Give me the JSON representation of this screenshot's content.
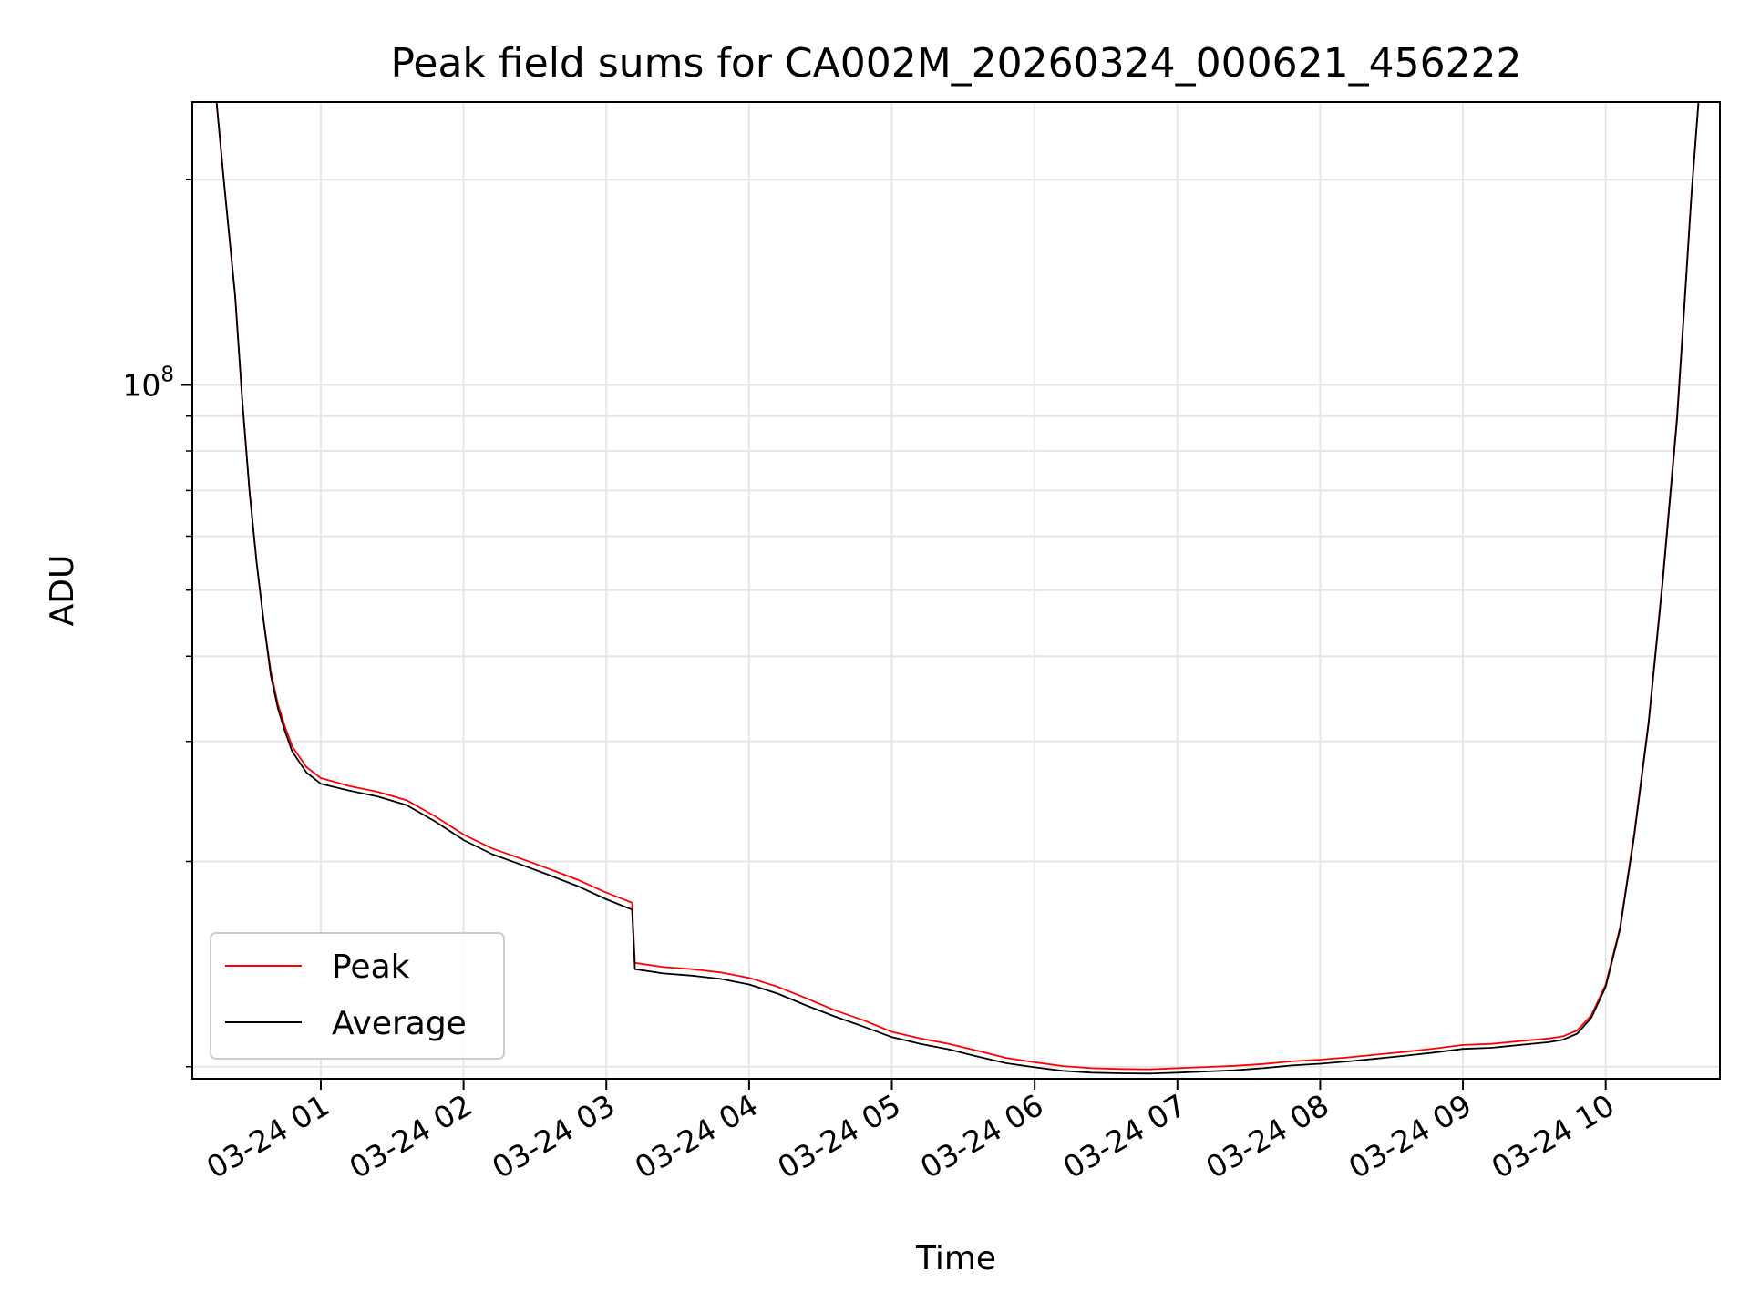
{
  "chart_data": {
    "type": "line",
    "title": "Peak field sums for CA002M_20260324_000621_456222",
    "xlabel": "Time",
    "ylabel": "ADU",
    "yscale": "log",
    "xlim": [
      0.1,
      10.8
    ],
    "ylim": [
      9600000,
      260000000
    ],
    "x_unit": "hours after 2026-03-24 00:00",
    "x_ticks": [
      1,
      2,
      3,
      4,
      5,
      6,
      7,
      8,
      9,
      10
    ],
    "x_tick_labels": [
      "03-24 01",
      "03-24 02",
      "03-24 03",
      "03-24 04",
      "03-24 05",
      "03-24 06",
      "03-24 07",
      "03-24 08",
      "03-24 09",
      "03-24 10"
    ],
    "y_major_ticks": [
      100000000
    ],
    "y_major_tick_labels": [
      {
        "base": "10",
        "exp": "8"
      }
    ],
    "y_minor_ticks": [
      10000000,
      20000000,
      30000000,
      40000000,
      50000000,
      60000000,
      70000000,
      80000000,
      90000000,
      200000000
    ],
    "grid": true,
    "legend_position": "lower-left",
    "colors": {
      "peak": "#ff0000",
      "average": "#000000",
      "grid": "#e6e6e6"
    },
    "series": [
      {
        "name": "Peak",
        "color": "#ff0000",
        "x": [
          0.1,
          0.27,
          0.32,
          0.4,
          0.45,
          0.5,
          0.55,
          0.6,
          0.65,
          0.7,
          0.75,
          0.8,
          0.9,
          1.0,
          1.2,
          1.4,
          1.6,
          1.8,
          2.0,
          2.2,
          2.4,
          2.6,
          2.8,
          3.0,
          3.18,
          3.2,
          3.4,
          3.6,
          3.8,
          4.0,
          4.2,
          4.4,
          4.6,
          4.8,
          5.0,
          5.2,
          5.4,
          5.6,
          5.8,
          6.0,
          6.2,
          6.4,
          6.6,
          6.8,
          7.0,
          7.2,
          7.4,
          7.6,
          7.8,
          8.0,
          8.2,
          8.4,
          8.6,
          8.8,
          9.0,
          9.2,
          9.4,
          9.6,
          9.7,
          9.8,
          9.9,
          10.0,
          10.1,
          10.2,
          10.3,
          10.4,
          10.5,
          10.55,
          10.6,
          10.65,
          10.8
        ],
        "y": [
          260000000,
          260000000,
          200000000,
          135000000,
          95000000,
          70000000,
          55000000,
          45000000,
          38000000,
          34000000,
          31500000,
          29500000,
          27500000,
          26500000,
          25800000,
          25300000,
          24600000,
          23300000,
          21900000,
          20900000,
          20200000,
          19500000,
          18800000,
          18000000,
          17400000,
          14200000,
          14000000,
          13900000,
          13750000,
          13500000,
          13100000,
          12600000,
          12100000,
          11700000,
          11250000,
          11000000,
          10800000,
          10550000,
          10300000,
          10150000,
          10020000,
          9950000,
          9920000,
          9910000,
          9950000,
          9990000,
          10030000,
          10090000,
          10180000,
          10240000,
          10320000,
          10420000,
          10520000,
          10630000,
          10760000,
          10800000,
          10900000,
          11000000,
          11080000,
          11300000,
          11900000,
          13200000,
          16000000,
          22000000,
          32000000,
          52000000,
          90000000,
          130000000,
          190000000,
          260000000,
          260000000
        ]
      },
      {
        "name": "Average",
        "color": "#000000",
        "x": [
          0.1,
          0.27,
          0.32,
          0.4,
          0.45,
          0.5,
          0.55,
          0.6,
          0.65,
          0.7,
          0.75,
          0.8,
          0.9,
          1.0,
          1.2,
          1.4,
          1.6,
          1.8,
          2.0,
          2.2,
          2.4,
          2.6,
          2.8,
          3.0,
          3.18,
          3.2,
          3.4,
          3.6,
          3.8,
          4.0,
          4.2,
          4.4,
          4.6,
          4.8,
          5.0,
          5.2,
          5.4,
          5.6,
          5.8,
          6.0,
          6.2,
          6.4,
          6.6,
          6.8,
          7.0,
          7.2,
          7.4,
          7.6,
          7.8,
          8.0,
          8.2,
          8.4,
          8.6,
          8.8,
          9.0,
          9.2,
          9.4,
          9.6,
          9.7,
          9.8,
          9.9,
          10.0,
          10.1,
          10.2,
          10.3,
          10.4,
          10.5,
          10.55,
          10.6,
          10.65,
          10.8
        ],
        "y": [
          260000000,
          260000000,
          200000000,
          135000000,
          95000000,
          70000000,
          55000000,
          45000000,
          37500000,
          33500000,
          31000000,
          29000000,
          27000000,
          26000000,
          25400000,
          24900000,
          24200000,
          22900000,
          21500000,
          20500000,
          19800000,
          19100000,
          18400000,
          17600000,
          17000000,
          13900000,
          13700000,
          13600000,
          13450000,
          13200000,
          12800000,
          12300000,
          11850000,
          11450000,
          11050000,
          10800000,
          10600000,
          10350000,
          10120000,
          9980000,
          9860000,
          9800000,
          9780000,
          9770000,
          9800000,
          9840000,
          9880000,
          9950000,
          10040000,
          10100000,
          10180000,
          10280000,
          10380000,
          10490000,
          10620000,
          10660000,
          10760000,
          10860000,
          10950000,
          11180000,
          11800000,
          13100000,
          15900000,
          21800000,
          31800000,
          51500000,
          89000000,
          129000000,
          189000000,
          260000000,
          260000000
        ]
      }
    ]
  }
}
